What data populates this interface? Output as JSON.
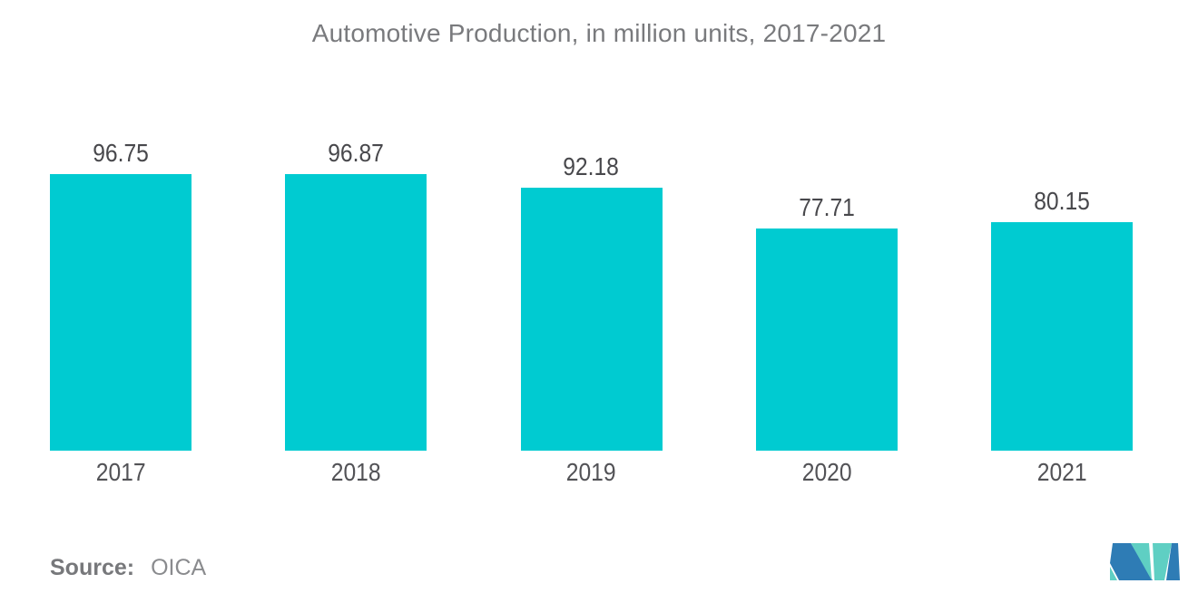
{
  "chart_data": {
    "type": "bar",
    "title": "Automotive Production, in million units, 2017-2021",
    "categories": [
      "2017",
      "2018",
      "2019",
      "2020",
      "2021"
    ],
    "values": [
      96.75,
      96.87,
      92.18,
      77.71,
      80.15
    ],
    "value_labels": [
      "96.75",
      "96.87",
      "92.18",
      "77.71",
      "80.15"
    ],
    "xlabel": "",
    "ylabel": "",
    "ylim": [
      0,
      100
    ],
    "grid": false,
    "legend": false,
    "bar_color": "#00cbd1",
    "value_label_color": "#48484c",
    "axis_label_color": "#525256",
    "title_color": "#797a7d"
  },
  "source": {
    "label": "Source:",
    "value": "OICA"
  },
  "logo": {
    "name": "mordor-intelligence-logo",
    "teal": "#5fcfc3",
    "blue": "#2e7cb5"
  }
}
